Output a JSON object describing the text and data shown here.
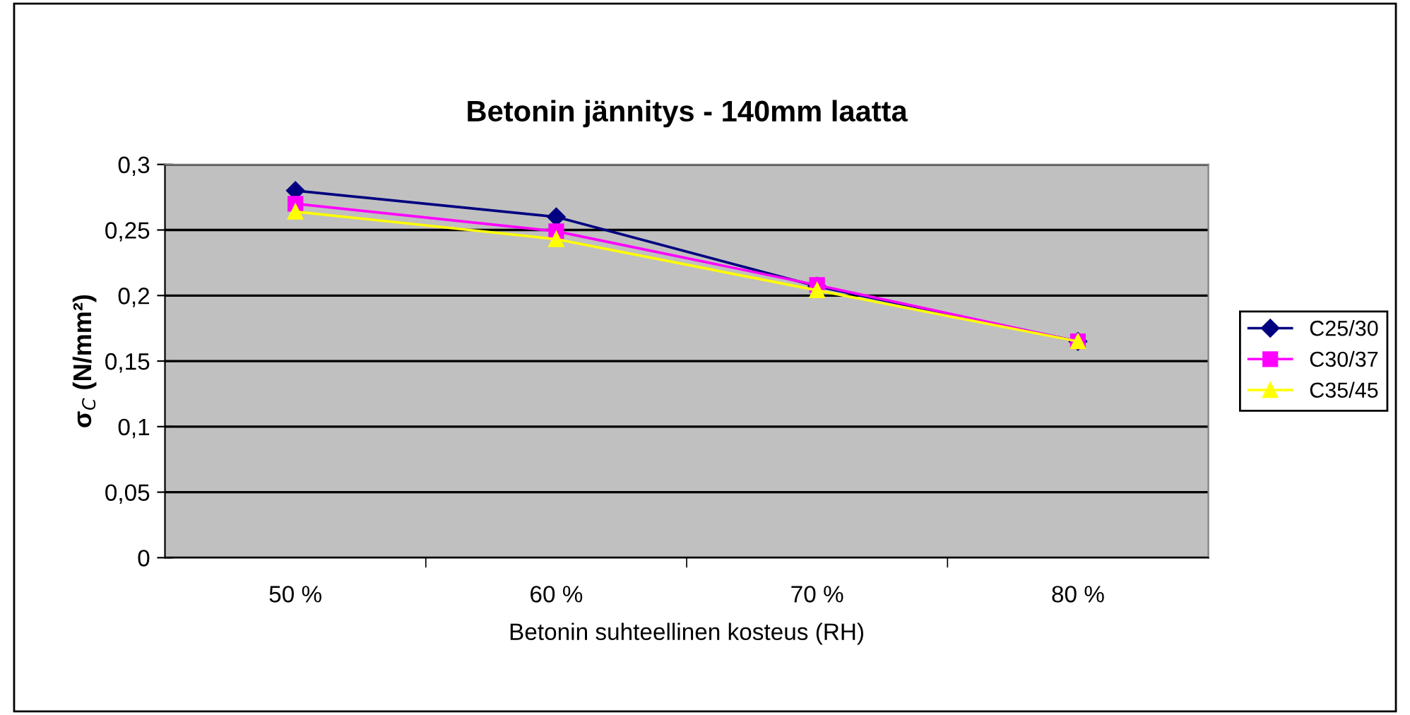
{
  "chart_data": {
    "type": "line",
    "title": "Betonin jännitys - 140mm laatta",
    "xlabel": "Betonin suhteellinen kosteus (RH)",
    "ylabel": "σ$_{C}$ (N/mm²)",
    "categories": [
      "50 %",
      "60 %",
      "70 %",
      "80 %"
    ],
    "series": [
      {
        "name": "C25/30",
        "color": "#000080",
        "marker": "diamond",
        "values": [
          0.28,
          0.26,
          0.207,
          0.165
        ]
      },
      {
        "name": "C30/37",
        "color": "#ff00ff",
        "marker": "square",
        "values": [
          0.27,
          0.249,
          0.208,
          0.165
        ]
      },
      {
        "name": "C35/45",
        "color": "#ffff00",
        "marker": "triangle",
        "values": [
          0.264,
          0.243,
          0.204,
          0.165
        ]
      }
    ],
    "ylim": [
      0,
      0.3
    ],
    "yticks": [
      0,
      {
        "value": 0.05,
        "label": "0,05"
      },
      {
        "value": 0.1,
        "label": "0,1"
      },
      {
        "value": 0.15,
        "label": "0,15"
      },
      {
        "value": 0.2,
        "label": "0,2"
      },
      {
        "value": 0.25,
        "label": "0,25"
      },
      {
        "value": 0.3,
        "label": "0,3"
      }
    ],
    "grid": "y",
    "legend": "right",
    "line_style": "solid"
  }
}
